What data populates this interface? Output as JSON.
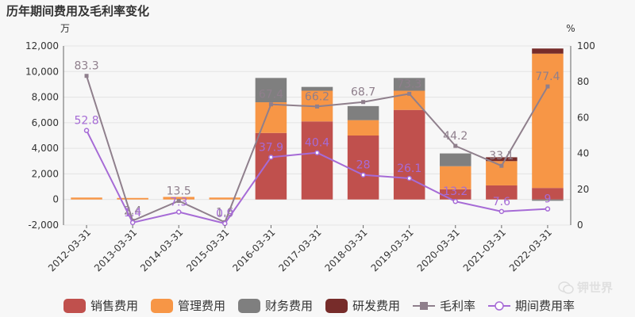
{
  "chart_data": {
    "type": "bar",
    "title": "历年期间费用及毛利率变化",
    "left_unit": "万",
    "right_unit": "%",
    "categories": [
      "2012-03-31",
      "2013-03-31",
      "2014-03-31",
      "2015-03-31",
      "2016-03-31",
      "2017-03-31",
      "2018-03-31",
      "2019-03-31",
      "2020-03-31",
      "2021-03-31",
      "2022-03-31"
    ],
    "left_axis": {
      "ylim": [
        -2000,
        12000
      ],
      "ticks": [
        "-2,000",
        "0",
        "2,000",
        "4,000",
        "6,000",
        "8,000",
        "10,000",
        "12,000"
      ]
    },
    "right_axis": {
      "ylim": [
        0,
        100
      ],
      "ticks": [
        "0",
        "20",
        "40",
        "60",
        "80",
        "100"
      ]
    },
    "bar_series": [
      {
        "name": "销售费用",
        "color": "#c0504d",
        "values": [
          0,
          0,
          0,
          0,
          5200,
          6100,
          5000,
          7000,
          800,
          1100,
          900
        ]
      },
      {
        "name": "管理费用",
        "color": "#f79646",
        "values": [
          150,
          120,
          200,
          150,
          2400,
          2400,
          1200,
          1500,
          1800,
          1900,
          10500
        ]
      },
      {
        "name": "财务费用",
        "color": "#7f7f7f",
        "values": [
          0,
          0,
          0,
          0,
          1900,
          300,
          1100,
          1000,
          1000,
          0,
          -100
        ]
      },
      {
        "name": "研发费用",
        "color": "#772c2a",
        "values": [
          0,
          0,
          0,
          0,
          0,
          0,
          0,
          0,
          0,
          300,
          400
        ]
      }
    ],
    "line_series": [
      {
        "name": "毛利率",
        "color": "#8f7f8c",
        "marker": "square",
        "values": [
          83.3,
          2.4,
          13.5,
          1.6,
          67.4,
          66.2,
          68.7,
          73.3,
          44.2,
          33.1,
          77.4
        ],
        "labels": [
          "83.3",
          "2.4",
          "13.5",
          "1.6",
          "67.4",
          "66.2",
          "68.7",
          "73.3",
          "44.2",
          "33.1",
          "77.4"
        ]
      },
      {
        "name": "期间费用率",
        "color": "#a66bd6",
        "marker": "circle",
        "values": [
          52.8,
          1.4,
          7.3,
          0.9,
          37.9,
          40.4,
          28,
          26.1,
          13.2,
          7.6,
          9
        ],
        "labels": [
          "52.8",
          "1.4",
          "7.3",
          "0.9",
          "37.9",
          "40.4",
          "28",
          "26.1",
          "13.2",
          "7.6",
          "9"
        ]
      }
    ],
    "legend_position": "bottom",
    "grid": true
  },
  "watermark": {
    "text": "钾世界",
    "icon": "wechat-icon"
  }
}
